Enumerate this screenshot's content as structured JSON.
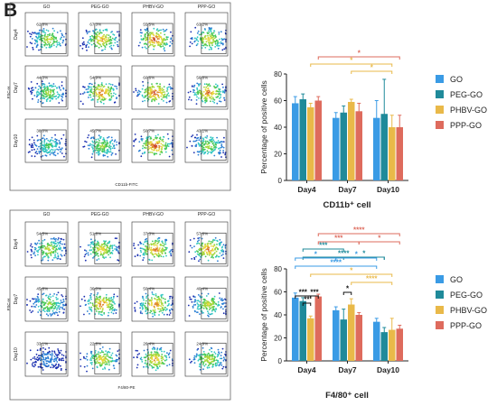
{
  "panel_letter": "B",
  "flow_grids": [
    {
      "col_labels": [
        "GO",
        "PEG-GO",
        "PHBV-GO",
        "PPP-GO"
      ],
      "row_labels": [
        "Day4",
        "Day7",
        "Day10"
      ],
      "percents": [
        [
          "62.8%",
          "67.3%",
          "55.5%",
          "63.2%"
        ],
        [
          "44.3%",
          "54.9%",
          "60.6%",
          "56.8%"
        ],
        [
          "38.0%",
          "45.7%",
          "50.7%",
          "43.1%"
        ]
      ],
      "y_axis": "FSC-H",
      "x_axis": "CD11b-FITC"
    },
    {
      "col_labels": [
        "GO",
        "PEG-GO",
        "PHBV-GO",
        "PPP-GO"
      ],
      "row_labels": [
        "Day4",
        "Day7",
        "Day10"
      ],
      "percents": [
        [
          "54.5%",
          "51.8%",
          "37.3%",
          "57.6%"
        ],
        [
          "45.8%",
          "36.0%",
          "50.4%",
          "40.4%"
        ],
        [
          "33.1%",
          "22.8%",
          "26.4%",
          "24.9%"
        ]
      ],
      "y_axis": "FSC-H",
      "x_axis": "F4/80-PE"
    }
  ],
  "chart_data": [
    {
      "type": "bar",
      "title": "CD11b⁺ cell",
      "xlabel": "",
      "ylabel": "Percentage of positive cells",
      "ylim": [
        0,
        80
      ],
      "yticks": [
        0,
        20,
        40,
        60,
        80
      ],
      "categories": [
        "Day4",
        "Day7",
        "Day10"
      ],
      "series": [
        {
          "name": "GO",
          "color": "#3a9be5",
          "values": [
            58,
            47,
            47
          ],
          "errors": [
            5,
            4,
            13
          ]
        },
        {
          "name": "PEG-GO",
          "color": "#1f8a9a",
          "values": [
            61,
            51,
            50
          ],
          "errors": [
            4,
            5,
            26
          ]
        },
        {
          "name": "PHBV-GO",
          "color": "#e9b949",
          "values": [
            55,
            59,
            40
          ],
          "errors": [
            3,
            2,
            9
          ]
        },
        {
          "name": "PPP-GO",
          "color": "#de6b5d",
          "values": [
            60,
            52,
            40
          ],
          "errors": [
            3,
            6,
            9
          ]
        }
      ],
      "significance": [
        {
          "label": "*",
          "from": [
            0,
            3
          ],
          "to": [
            2,
            3
          ],
          "color": "#de6b5d"
        },
        {
          "label": "*",
          "from": [
            0,
            2
          ],
          "to": [
            2,
            2
          ],
          "color": "#e9b949"
        },
        {
          "label": "*",
          "from": [
            1,
            2
          ],
          "to": [
            2,
            2
          ],
          "color": "#e9b949"
        }
      ],
      "legend": "right"
    },
    {
      "type": "bar",
      "title": "F4/80⁺ cell",
      "xlabel": "",
      "ylabel": "Percentage of positive cells",
      "ylim": [
        0,
        80
      ],
      "yticks": [
        0,
        20,
        40,
        60,
        80
      ],
      "categories": [
        "Day4",
        "Day7",
        "Day10"
      ],
      "series": [
        {
          "name": "GO",
          "color": "#3a9be5",
          "values": [
            55,
            44,
            34
          ],
          "errors": [
            4,
            3,
            3
          ]
        },
        {
          "name": "PEG-GO",
          "color": "#1f8a9a",
          "values": [
            52,
            36,
            25
          ],
          "errors": [
            3,
            9,
            4
          ]
        },
        {
          "name": "PHBV-GO",
          "color": "#e9b949",
          "values": [
            37,
            49,
            27
          ],
          "errors": [
            2,
            5,
            10
          ]
        },
        {
          "name": "PPP-GO",
          "color": "#de6b5d",
          "values": [
            56,
            40,
            28
          ],
          "errors": [
            2,
            2,
            3
          ]
        }
      ],
      "significance": [
        {
          "label": "****",
          "from": [
            0,
            3
          ],
          "to": [
            2,
            3
          ],
          "color": "#de6b5d"
        },
        {
          "label": "***",
          "from": [
            0,
            3
          ],
          "to": [
            1,
            3
          ],
          "color": "#de6b5d"
        },
        {
          "label": "*",
          "from": [
            1,
            3
          ],
          "to": [
            2,
            3
          ],
          "color": "#de6b5d"
        },
        {
          "label": "***",
          "from": [
            0,
            1
          ],
          "to": [
            1,
            1
          ],
          "color": "#1f8a9a"
        },
        {
          "label": "****",
          "from": [
            0,
            1
          ],
          "to": [
            2,
            1
          ],
          "color": "#1f8a9a"
        },
        {
          "label": "*",
          "from": [
            1,
            1
          ],
          "to": [
            2,
            1
          ],
          "color": "#1f8a9a"
        },
        {
          "label": "*",
          "from": [
            0,
            0
          ],
          "to": [
            1,
            0
          ],
          "color": "#3a9be5"
        },
        {
          "label": "*",
          "from": [
            1,
            0
          ],
          "to": [
            2,
            0
          ],
          "color": "#3a9be5"
        },
        {
          "label": "****",
          "from": [
            0,
            0
          ],
          "to": [
            2,
            0
          ],
          "color": "#3a9be5"
        },
        {
          "label": "*",
          "from": [
            0,
            2
          ],
          "to": [
            2,
            2
          ],
          "color": "#e9b949"
        },
        {
          "label": "****",
          "from": [
            1,
            2
          ],
          "to": [
            2,
            2
          ],
          "color": "#e9b949"
        },
        {
          "label": "*",
          "from": [
            1,
            1
          ],
          "to": [
            1,
            2
          ],
          "color": "#111111"
        },
        {
          "label": "***",
          "from": [
            0,
            0
          ],
          "to": [
            0,
            2
          ],
          "color": "#111111"
        },
        {
          "label": "**",
          "from": [
            0,
            1
          ],
          "to": [
            0,
            2
          ],
          "color": "#111111"
        },
        {
          "label": "***",
          "from": [
            0,
            2
          ],
          "to": [
            0,
            3
          ],
          "color": "#111111"
        }
      ],
      "legend": "right"
    }
  ]
}
